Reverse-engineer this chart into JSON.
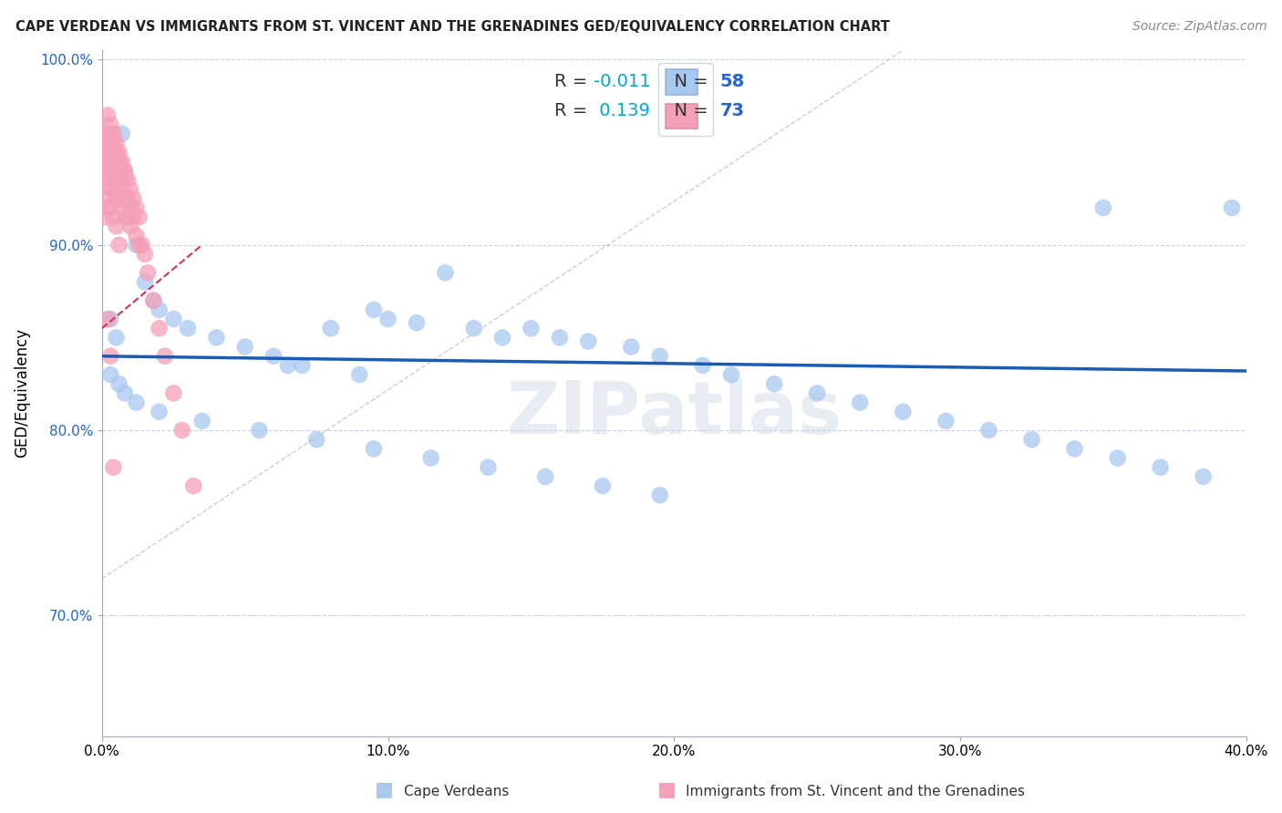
{
  "title": "CAPE VERDEAN VS IMMIGRANTS FROM ST. VINCENT AND THE GRENADINES GED/EQUIVALENCY CORRELATION CHART",
  "source": "Source: ZipAtlas.com",
  "xlabel_blue": "Cape Verdeans",
  "xlabel_pink": "Immigrants from St. Vincent and the Grenadines",
  "ylabel": "GED/Equivalency",
  "xlim": [
    0.0,
    0.4
  ],
  "ylim": [
    0.635,
    1.005
  ],
  "yticks": [
    0.7,
    0.8,
    0.9,
    1.0
  ],
  "ytick_labels": [
    "70.0%",
    "80.0%",
    "90.0%",
    "100.0%"
  ],
  "xticks": [
    0.0,
    0.1,
    0.2,
    0.3,
    0.4
  ],
  "xtick_labels": [
    "0.0%",
    "10.0%",
    "20.0%",
    "30.0%",
    "40.0%"
  ],
  "R_blue": -0.011,
  "N_blue": 58,
  "R_pink": 0.139,
  "N_pink": 73,
  "blue_color": "#a8c8f0",
  "pink_color": "#f4a0b8",
  "trend_blue_color": "#1a5cb5",
  "trend_pink_color": "#cc3355",
  "watermark": "ZIPatlas",
  "legend_R_color": "#00aacc",
  "legend_N_color": "#2266cc",
  "blue_x": [
    0.003,
    0.005,
    0.007,
    0.008,
    0.01,
    0.012,
    0.015,
    0.018,
    0.02,
    0.025,
    0.03,
    0.04,
    0.05,
    0.06,
    0.065,
    0.07,
    0.08,
    0.09,
    0.095,
    0.1,
    0.11,
    0.12,
    0.13,
    0.14,
    0.15,
    0.16,
    0.17,
    0.185,
    0.195,
    0.21,
    0.22,
    0.235,
    0.25,
    0.265,
    0.28,
    0.295,
    0.31,
    0.325,
    0.34,
    0.355,
    0.37,
    0.385,
    0.395,
    0.003,
    0.006,
    0.008,
    0.012,
    0.02,
    0.035,
    0.055,
    0.075,
    0.095,
    0.115,
    0.135,
    0.155,
    0.175,
    0.195,
    0.35
  ],
  "blue_y": [
    0.86,
    0.85,
    0.96,
    0.94,
    0.92,
    0.9,
    0.88,
    0.87,
    0.865,
    0.86,
    0.855,
    0.85,
    0.845,
    0.84,
    0.835,
    0.835,
    0.855,
    0.83,
    0.865,
    0.86,
    0.858,
    0.885,
    0.855,
    0.85,
    0.855,
    0.85,
    0.848,
    0.845,
    0.84,
    0.835,
    0.83,
    0.825,
    0.82,
    0.815,
    0.81,
    0.805,
    0.8,
    0.795,
    0.79,
    0.785,
    0.78,
    0.775,
    0.92,
    0.83,
    0.825,
    0.82,
    0.815,
    0.81,
    0.805,
    0.8,
    0.795,
    0.79,
    0.785,
    0.78,
    0.775,
    0.77,
    0.765,
    0.92
  ],
  "pink_x": [
    0.001,
    0.001,
    0.001,
    0.001,
    0.001,
    0.001,
    0.002,
    0.002,
    0.002,
    0.002,
    0.002,
    0.002,
    0.002,
    0.002,
    0.003,
    0.003,
    0.003,
    0.003,
    0.003,
    0.003,
    0.003,
    0.003,
    0.004,
    0.004,
    0.004,
    0.004,
    0.004,
    0.004,
    0.004,
    0.005,
    0.005,
    0.005,
    0.005,
    0.005,
    0.005,
    0.006,
    0.006,
    0.006,
    0.006,
    0.006,
    0.006,
    0.007,
    0.007,
    0.007,
    0.007,
    0.008,
    0.008,
    0.008,
    0.008,
    0.009,
    0.009,
    0.009,
    0.01,
    0.01,
    0.01,
    0.011,
    0.011,
    0.012,
    0.012,
    0.013,
    0.013,
    0.014,
    0.015,
    0.016,
    0.018,
    0.02,
    0.022,
    0.025,
    0.028,
    0.032,
    0.002,
    0.003,
    0.004
  ],
  "pink_y": [
    0.96,
    0.95,
    0.945,
    0.935,
    0.925,
    0.915,
    0.97,
    0.96,
    0.955,
    0.95,
    0.945,
    0.94,
    0.935,
    0.92,
    0.965,
    0.96,
    0.955,
    0.95,
    0.945,
    0.94,
    0.93,
    0.92,
    0.96,
    0.955,
    0.95,
    0.945,
    0.94,
    0.93,
    0.915,
    0.955,
    0.95,
    0.945,
    0.935,
    0.925,
    0.91,
    0.95,
    0.945,
    0.94,
    0.935,
    0.925,
    0.9,
    0.945,
    0.94,
    0.93,
    0.92,
    0.94,
    0.935,
    0.925,
    0.915,
    0.935,
    0.925,
    0.915,
    0.93,
    0.92,
    0.91,
    0.925,
    0.915,
    0.92,
    0.905,
    0.915,
    0.9,
    0.9,
    0.895,
    0.885,
    0.87,
    0.855,
    0.84,
    0.82,
    0.8,
    0.77,
    0.86,
    0.84,
    0.78
  ]
}
